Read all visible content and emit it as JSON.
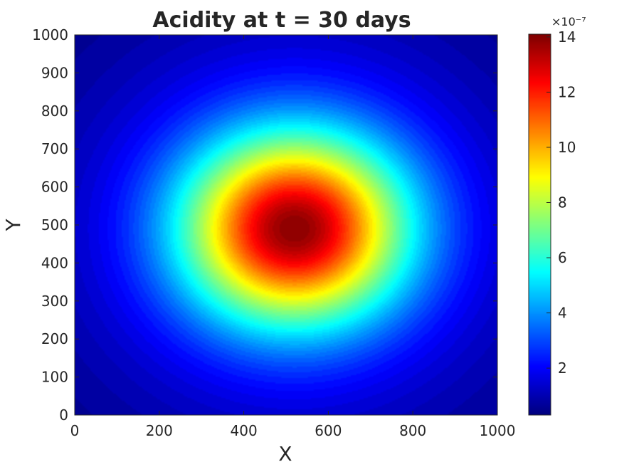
{
  "chart_data": {
    "type": "heatmap",
    "title": "Acidity at t = 30 days",
    "xlabel": "X",
    "ylabel": "Y",
    "xlim": [
      0,
      1000
    ],
    "ylim": [
      0,
      1000
    ],
    "xticks": [
      0,
      200,
      400,
      600,
      800,
      1000
    ],
    "yticks": [
      0,
      100,
      200,
      300,
      400,
      500,
      600,
      700,
      800,
      900,
      1000
    ],
    "colormap": "jet",
    "colorbar": {
      "multiplier": "×10⁻⁷",
      "exponent": -7,
      "min": 0.3,
      "max": 14.1,
      "ticks": [
        2,
        4,
        6,
        8,
        10,
        12,
        14
      ]
    },
    "field": {
      "peak_value": 14.1,
      "peak_center": [
        520,
        490
      ],
      "background_value": 0.3
    }
  }
}
